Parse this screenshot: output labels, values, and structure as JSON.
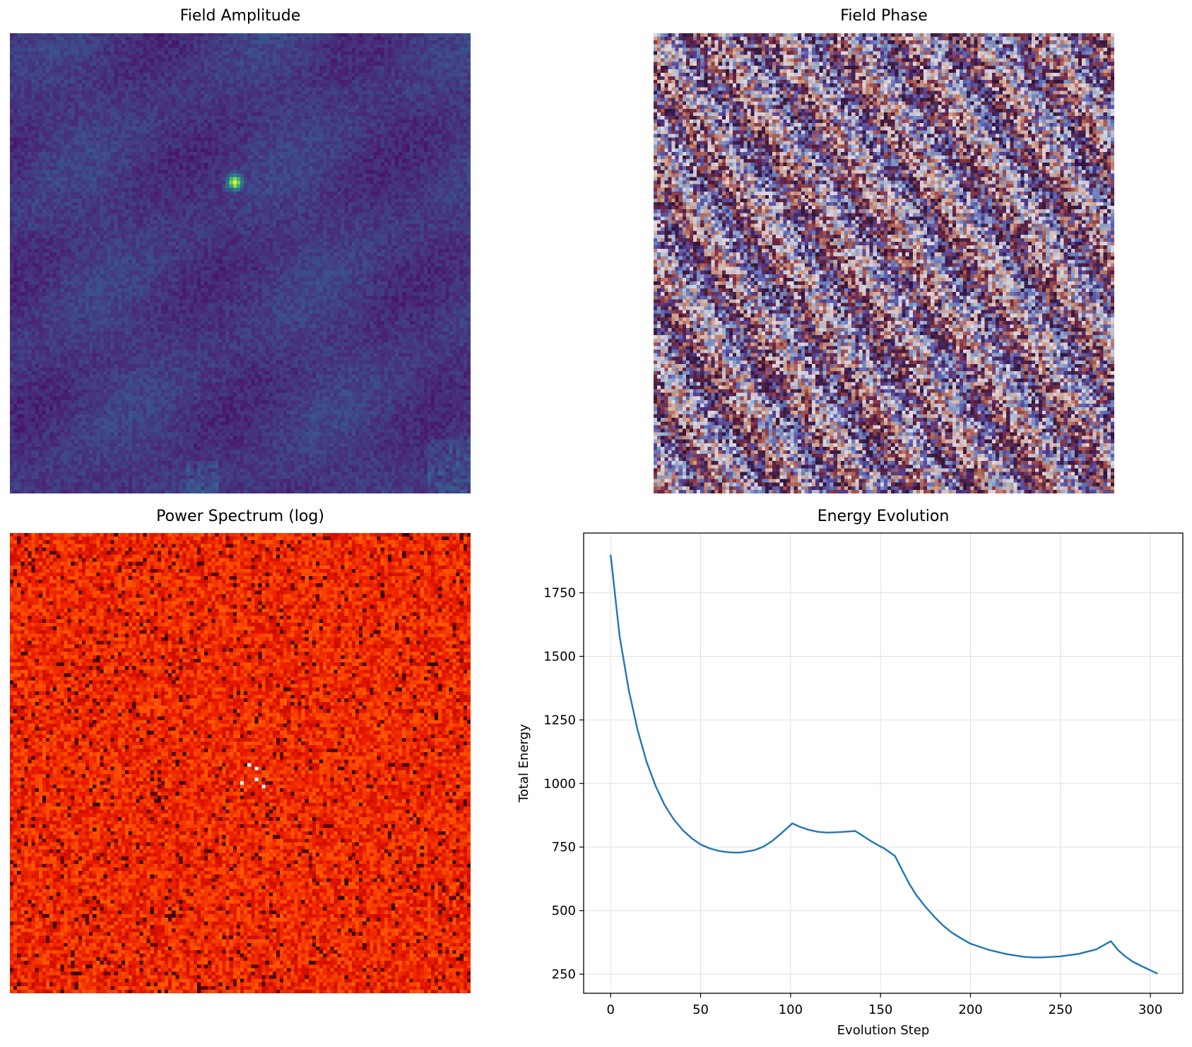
{
  "panels": {
    "amplitude": {
      "title": "Field Amplitude"
    },
    "phase": {
      "title": "Field Phase"
    },
    "spectrum": {
      "title": "Power Spectrum (log)"
    },
    "energy": {
      "title": "Energy Evolution"
    }
  },
  "colors": {
    "line": "#1f77b4",
    "grid": "#e0e0e0",
    "amplitude_cmap": "viridis",
    "phase_cmap": "twilight",
    "spectrum_cmap": "hot"
  },
  "chart_data": [
    {
      "type": "heatmap",
      "title": "Field Amplitude",
      "colormap": "viridis",
      "axes_visible": false,
      "grid_size": 128
    },
    {
      "type": "heatmap",
      "title": "Field Phase",
      "colormap": "twilight",
      "axes_visible": false,
      "grid_size": 128
    },
    {
      "type": "heatmap",
      "title": "Power Spectrum (log)",
      "colormap": "hot",
      "axes_visible": false,
      "grid_size": 128
    },
    {
      "type": "line",
      "title": "Energy Evolution",
      "xlabel": "Evolution Step",
      "ylabel": "Total Energy",
      "xlim": [
        -15,
        318
      ],
      "ylim": [
        175,
        1985
      ],
      "grid": true,
      "xticks": [
        0,
        50,
        100,
        150,
        200,
        250,
        300
      ],
      "yticks": [
        250,
        500,
        750,
        1000,
        1250,
        1500,
        1750
      ],
      "series": [
        {
          "x": [
            0,
            5,
            10,
            15,
            20,
            25,
            30,
            35,
            40,
            45,
            50,
            55,
            60,
            65,
            70,
            73,
            80,
            85,
            90,
            95,
            101,
            105,
            110,
            115,
            120,
            125,
            130,
            136,
            140,
            145,
            150,
            152,
            155,
            158,
            162,
            166,
            170,
            175,
            180,
            185,
            190,
            195,
            200,
            210,
            220,
            230,
            235,
            240,
            250,
            260,
            270,
            278,
            282,
            286,
            290,
            295,
            300,
            304
          ],
          "y": [
            1900,
            1580,
            1370,
            1210,
            1085,
            990,
            915,
            860,
            817,
            785,
            760,
            745,
            735,
            730,
            728,
            729,
            738,
            752,
            775,
            805,
            843,
            830,
            818,
            810,
            807,
            808,
            810,
            813,
            795,
            772,
            752,
            745,
            730,
            715,
            660,
            605,
            560,
            515,
            475,
            440,
            412,
            390,
            370,
            346,
            329,
            318,
            316,
            316,
            320,
            330,
            348,
            380,
            345,
            320,
            300,
            282,
            265,
            252
          ]
        }
      ]
    }
  ]
}
